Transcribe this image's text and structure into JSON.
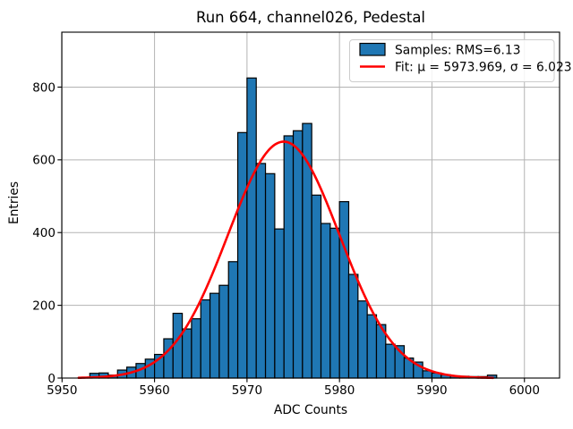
{
  "chart_data": {
    "type": "bar",
    "subtype": "histogram-with-gaussian-fit",
    "title": "Run 664, channel026, Pedestal",
    "xlabel": "ADC Counts",
    "ylabel": "Entries",
    "xlim": [
      5949.97,
      6003.8
    ],
    "ylim": [
      0,
      951
    ],
    "xticks": [
      5950,
      5960,
      5970,
      5980,
      5990,
      6000
    ],
    "yticks": [
      0,
      200,
      400,
      600,
      800
    ],
    "grid": true,
    "grid_color": "#b3b3b3",
    "bar_color": "#1f77b4",
    "bar_edge_color": "#000000",
    "bin_width": 1,
    "bins": [
      5953,
      5954,
      5955,
      5956,
      5957,
      5958,
      5959,
      5960,
      5961,
      5962,
      5963,
      5964,
      5965,
      5966,
      5967,
      5968,
      5969,
      5970,
      5971,
      5972,
      5973,
      5974,
      5975,
      5976,
      5977,
      5978,
      5979,
      5980,
      5981,
      5982,
      5983,
      5984,
      5985,
      5986,
      5987,
      5988,
      5989,
      5990,
      5991,
      5992,
      5993,
      5994,
      5995,
      5996
    ],
    "values": [
      13,
      14,
      8,
      22,
      30,
      40,
      52,
      65,
      108,
      178,
      135,
      163,
      215,
      233,
      255,
      320,
      675,
      825,
      590,
      562,
      410,
      666,
      680,
      700,
      503,
      425,
      412,
      485,
      285,
      212,
      174,
      147,
      93,
      89,
      55,
      44,
      20,
      14,
      9,
      6,
      5,
      4,
      4,
      8
    ],
    "fit": {
      "mu": 5973.969,
      "sigma": 6.023,
      "amplitude": 650,
      "color": "#ff0000",
      "x_start": 5951.8,
      "x_end": 5996.7
    },
    "legend": {
      "position": "upper right",
      "entries": [
        {
          "type": "patch",
          "label": "Samples: RMS=6.13",
          "color": "#1f77b4"
        },
        {
          "type": "line",
          "label": "Fit: μ = 5973.969, σ = 6.023",
          "color": "#ff0000"
        }
      ]
    }
  }
}
